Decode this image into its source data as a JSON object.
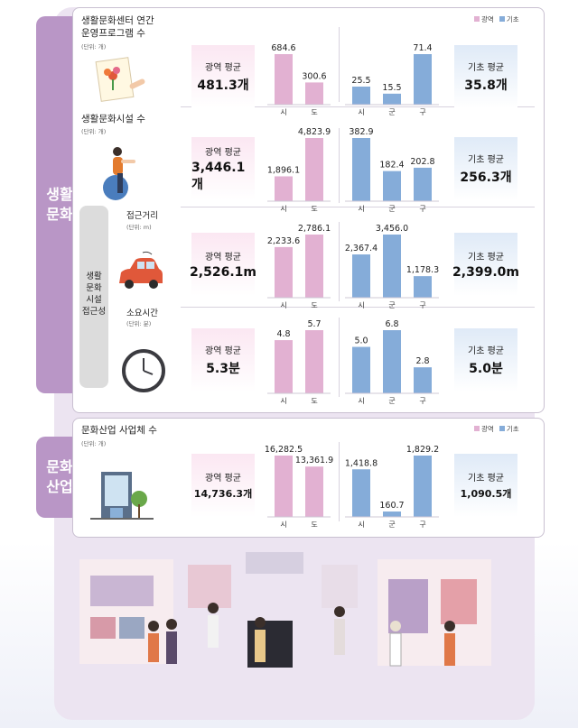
{
  "sections": {
    "living": "생활\n문화",
    "industry": "문화\n산업"
  },
  "legend": {
    "metro": "광역",
    "basic": "기초"
  },
  "colors": {
    "metro": "#e2b1d2",
    "basic": "#85acd9",
    "tab": "#b996c6"
  },
  "access_box": {
    "label": "생활\n문화\n시설\n접근성",
    "distance": "접근거리",
    "distance_unit": "(단위: m)",
    "time": "소요시간",
    "time_unit": "(단위: 분)"
  },
  "panels": [
    {
      "title": "생활문화센터 연간\n운영프로그램 수",
      "unit": "(단위: 개)",
      "icon": "painting-icon",
      "metro_avg_label": "광역 평균",
      "metro_avg": "481.3개",
      "basic_avg_label": "기초 평균",
      "basic_avg": "35.8개"
    },
    {
      "title": "생활문화시설 수",
      "unit": "(단위: 개)",
      "icon": "exercise-ball-icon",
      "metro_avg_label": "광역 평균",
      "metro_avg": "3,446.1개",
      "basic_avg_label": "기초 평균",
      "basic_avg": "256.3개"
    },
    {
      "title": "",
      "unit": "",
      "icon": "car-icon",
      "metro_avg_label": "광역 평균",
      "metro_avg": "2,526.1m",
      "basic_avg_label": "기초 평균",
      "basic_avg": "2,399.0m"
    },
    {
      "title": "",
      "unit": "",
      "icon": "clock-icon",
      "metro_avg_label": "광역 평균",
      "metro_avg": "5.3분",
      "basic_avg_label": "기초 평균",
      "basic_avg": "5.0분"
    },
    {
      "title": "문화산업 사업체 수",
      "unit": "(단위: 개)",
      "icon": "building-icon",
      "metro_avg_label": "광역 평균",
      "metro_avg": "14,736.3개",
      "basic_avg_label": "기초 평균",
      "basic_avg": "1,090.5개"
    }
  ],
  "chart_data": [
    {
      "type": "bar",
      "series": [
        {
          "name": "광역",
          "categories": [
            "시",
            "도"
          ],
          "values": [
            684.6,
            300.6
          ],
          "labels": [
            "684.6",
            "300.6"
          ]
        },
        {
          "name": "기초",
          "categories": [
            "시",
            "군",
            "구"
          ],
          "values": [
            25.5,
            15.5,
            71.4
          ],
          "labels": [
            "25.5",
            "15.5",
            "71.4"
          ]
        }
      ]
    },
    {
      "type": "bar",
      "series": [
        {
          "name": "광역",
          "categories": [
            "시",
            "도"
          ],
          "values": [
            1896.1,
            4823.9
          ],
          "labels": [
            "1,896.1",
            "4,823.9"
          ]
        },
        {
          "name": "기초",
          "categories": [
            "시",
            "군",
            "구"
          ],
          "values": [
            382.9,
            182.4,
            202.8
          ],
          "labels": [
            "382.9",
            "182.4",
            "202.8"
          ]
        }
      ]
    },
    {
      "type": "bar",
      "series": [
        {
          "name": "광역",
          "categories": [
            "시",
            "도"
          ],
          "values": [
            2233.6,
            2786.1
          ],
          "labels": [
            "2,233.6",
            "2,786.1"
          ]
        },
        {
          "name": "기초",
          "categories": [
            "시",
            "군",
            "구"
          ],
          "values": [
            2367.4,
            3456.0,
            1178.3
          ],
          "labels": [
            "2,367.4",
            "3,456.0",
            "1,178.3"
          ]
        }
      ]
    },
    {
      "type": "bar",
      "series": [
        {
          "name": "광역",
          "categories": [
            "시",
            "도"
          ],
          "values": [
            4.8,
            5.7
          ],
          "labels": [
            "4.8",
            "5.7"
          ]
        },
        {
          "name": "기초",
          "categories": [
            "시",
            "군",
            "구"
          ],
          "values": [
            5.0,
            6.8,
            2.8
          ],
          "labels": [
            "5.0",
            "6.8",
            "2.8"
          ]
        }
      ]
    },
    {
      "type": "bar",
      "series": [
        {
          "name": "광역",
          "categories": [
            "시",
            "도"
          ],
          "values": [
            16282.5,
            13361.9
          ],
          "labels": [
            "16,282.5",
            "13,361.9"
          ]
        },
        {
          "name": "기초",
          "categories": [
            "시",
            "군",
            "구"
          ],
          "values": [
            1418.8,
            160.7,
            1829.2
          ],
          "labels": [
            "1,418.8",
            "160.7",
            "1,829.2"
          ]
        }
      ]
    }
  ]
}
